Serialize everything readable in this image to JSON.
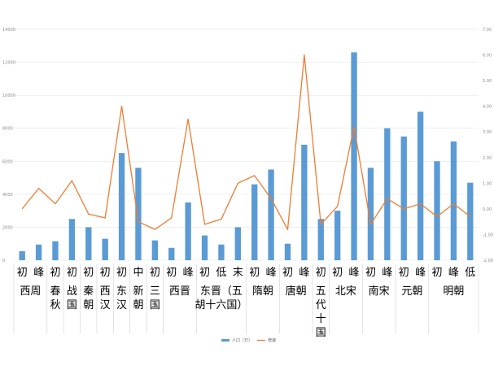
{
  "chart_data": {
    "type": "bar",
    "categories": [
      [
        "初"
      ],
      [
        "峰"
      ],
      [
        "初"
      ],
      [
        "初"
      ],
      [
        "初"
      ],
      [
        "初"
      ],
      [
        "初"
      ],
      [
        "中"
      ],
      [
        "初"
      ],
      [
        "初"
      ],
      [
        "峰"
      ],
      [
        "初"
      ],
      [
        "低"
      ],
      [
        "末"
      ],
      [
        "初"
      ],
      [
        "峰"
      ],
      [
        "初"
      ],
      [
        "峰"
      ],
      [
        "初"
      ],
      [
        "初"
      ],
      [
        "峰"
      ],
      [
        "初"
      ],
      [
        "峰"
      ],
      [
        "初"
      ],
      [
        "峰"
      ],
      [
        "初"
      ],
      [
        "峰"
      ],
      [
        "低"
      ]
    ],
    "groups": [
      {
        "label": [
          "西周"
        ],
        "from": 0,
        "to": 1
      },
      {
        "label": [
          "春",
          "秋"
        ],
        "from": 2,
        "to": 2
      },
      {
        "label": [
          "战",
          "国"
        ],
        "from": 3,
        "to": 3
      },
      {
        "label": [
          "秦",
          "朝"
        ],
        "from": 4,
        "to": 4
      },
      {
        "label": [
          "西",
          "汉"
        ],
        "from": 5,
        "to": 5
      },
      {
        "label": [
          "东",
          "汉"
        ],
        "from": 6,
        "to": 6
      },
      {
        "label": [
          "新",
          "朝"
        ],
        "from": 7,
        "to": 7
      },
      {
        "label": [
          "三",
          "国"
        ],
        "from": 8,
        "to": 8
      },
      {
        "label": [
          "西晋"
        ],
        "from": 9,
        "to": 10
      },
      {
        "label": [
          "东晋（五",
          "胡十六国）"
        ],
        "from": 11,
        "to": 13
      },
      {
        "label": [
          "隋朝"
        ],
        "from": 14,
        "to": 15
      },
      {
        "label": [
          "唐朝"
        ],
        "from": 16,
        "to": 17
      },
      {
        "label": [
          "五",
          "代",
          "十",
          "国"
        ],
        "from": 18,
        "to": 18
      },
      {
        "label": [
          "北宋"
        ],
        "from": 19,
        "to": 20
      },
      {
        "label": [
          "南宋"
        ],
        "from": 21,
        "to": 22
      },
      {
        "label": [
          "元朝"
        ],
        "from": 23,
        "to": 24
      },
      {
        "label": [
          "明朝"
        ],
        "from": 25,
        "to": 27
      }
    ],
    "series": [
      {
        "name": "人口（万）",
        "type": "bar",
        "axis": "left",
        "color": "#5b9bd5",
        "values": [
          550,
          950,
          1150,
          2500,
          2000,
          1300,
          6500,
          5600,
          1200,
          750,
          3500,
          1500,
          950,
          2000,
          4600,
          5500,
          1000,
          7000,
          2500,
          3000,
          12600,
          5600,
          8000,
          7500,
          9000,
          6000,
          7200,
          4700
        ]
      },
      {
        "name": "增速",
        "type": "line",
        "axis": "right",
        "color": "#ed7d31",
        "values": [
          0.0,
          0.8,
          0.2,
          1.1,
          -0.2,
          -0.35,
          4.0,
          -0.5,
          -0.8,
          -0.35,
          3.5,
          -0.6,
          -0.4,
          1.0,
          1.3,
          0.4,
          -0.8,
          6.0,
          -0.6,
          0.1,
          3.2,
          -0.6,
          0.4,
          0.0,
          0.2,
          -0.3,
          0.2,
          -0.3
        ]
      }
    ],
    "y_left": {
      "ylim": [
        0,
        14000
      ],
      "ticks": [
        0,
        2000,
        4000,
        6000,
        8000,
        10000,
        12000,
        14000
      ]
    },
    "y_right": {
      "ylim": [
        -2.0,
        7.0
      ],
      "ticks": [
        "-2.00",
        "-1.00",
        "0.00",
        "1.00",
        "2.00",
        "3.00",
        "4.00",
        "5.00",
        "6.00",
        "7.00"
      ]
    },
    "grid": true,
    "legend_position": "bottom"
  }
}
